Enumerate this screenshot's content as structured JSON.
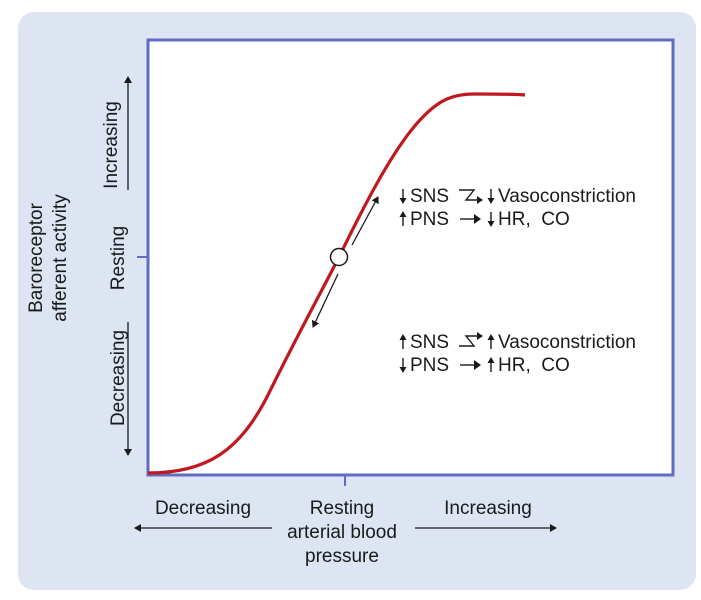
{
  "colors": {
    "background_panel": "#dde4f2",
    "plot_frame": "#5f6cc0",
    "curve": "#c0181f",
    "text": "#1a1a1a"
  },
  "y_axis": {
    "title_line1": "Baroreceptor",
    "title_line2": "afferent activity",
    "increasing": "Increasing",
    "resting": "Resting",
    "decreasing": "Decreasing"
  },
  "x_axis": {
    "decreasing": "Decreasing",
    "resting_line1": "Resting",
    "resting_line2": "arterial blood",
    "resting_line3": "pressure",
    "increasing": "Increasing"
  },
  "upper_annotation": {
    "line1_left": "SNS",
    "line1_right": "Vasoconstriction",
    "line2_left": "PNS",
    "line2_right": "HR,  CO",
    "line1_left_dir": "down",
    "line1_right_dir": "down",
    "line2_left_dir": "up",
    "line2_right_dir": "down"
  },
  "lower_annotation": {
    "line1_left": "SNS",
    "line1_right": "Vasoconstriction",
    "line2_left": "PNS",
    "line2_right": "HR,  CO",
    "line1_left_dir": "up",
    "line1_right_dir": "up",
    "line2_left_dir": "down",
    "line2_right_dir": "up"
  },
  "curve": {
    "type": "sigmoid",
    "description_note": "activity rises with pressure; resting point at midpoint"
  }
}
